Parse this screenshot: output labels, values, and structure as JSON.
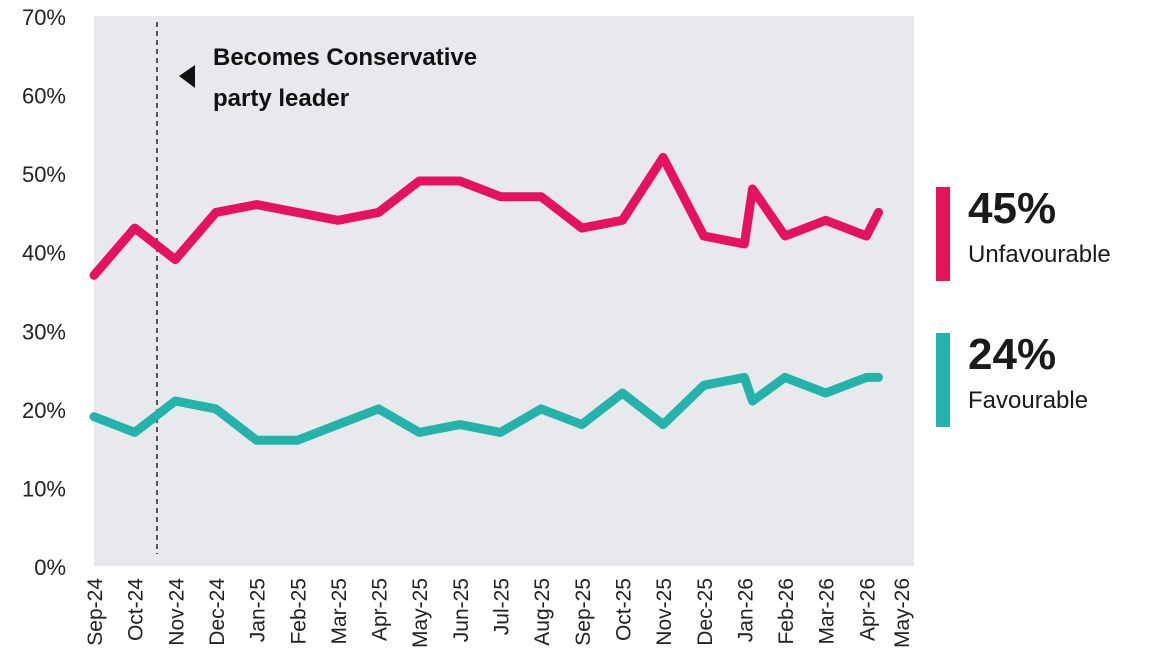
{
  "chart_data": {
    "type": "line",
    "categories": [
      "Sep-24",
      "Oct-24",
      "Nov-24",
      "Dec-24",
      "Jan-25",
      "Feb-25",
      "Mar-25",
      "Apr-25",
      "May-25",
      "Jun-25",
      "Jul-25",
      "Aug-25",
      "Sep-25",
      "Oct-25",
      "Nov-25",
      "Dec-25",
      "Jan-26",
      "Feb-26",
      "Mar-26",
      "Apr-26",
      "May-26"
    ],
    "x": [
      0,
      1,
      1.9,
      3,
      4,
      5,
      6,
      7,
      8,
      9,
      10,
      11,
      12,
      13,
      14,
      15,
      16,
      16.2,
      17,
      18,
      19,
      19.5,
      20,
      20.3
    ],
    "yticks": [
      "0%",
      "10%",
      "20%",
      "30%",
      "40%",
      "50%",
      "60%",
      "70%"
    ],
    "ylim": [
      0,
      70
    ],
    "series": [
      {
        "name": "Unfavourable",
        "color": "#e5135d",
        "x": [
          0,
          1,
          2,
          3,
          4,
          5,
          6,
          7,
          8,
          9,
          10,
          11,
          12,
          13,
          14,
          15,
          16,
          16.2,
          17,
          18,
          19,
          19.3
        ],
        "values": [
          37,
          43,
          39,
          45,
          46,
          45,
          44,
          45,
          49,
          49,
          47,
          47,
          43,
          44,
          52,
          42,
          41,
          48,
          42,
          44,
          42,
          45
        ]
      },
      {
        "name": "Favourable",
        "color": "#24b3ab",
        "x": [
          0,
          1,
          2,
          3,
          4,
          5,
          6,
          7,
          8,
          9,
          10,
          11,
          12,
          13,
          14,
          15,
          16,
          16.2,
          17,
          18,
          19,
          19.3
        ],
        "values": [
          19,
          17,
          21,
          20,
          16,
          16,
          18,
          20,
          17,
          18,
          17,
          20,
          18,
          22,
          18,
          23,
          24,
          21,
          24,
          22,
          24,
          24
        ]
      }
    ],
    "annotation": {
      "text_line1": "Becomes Conservative",
      "text_line2": "party leader",
      "at_x": 1.55
    },
    "grid": false,
    "background": "#e7e9ed"
  },
  "legend": {
    "unfavourable": {
      "value": "45%",
      "label": "Unfavourable",
      "color": "#e5135d"
    },
    "favourable": {
      "value": "24%",
      "label": "Favourable",
      "color": "#24b3ab"
    }
  }
}
